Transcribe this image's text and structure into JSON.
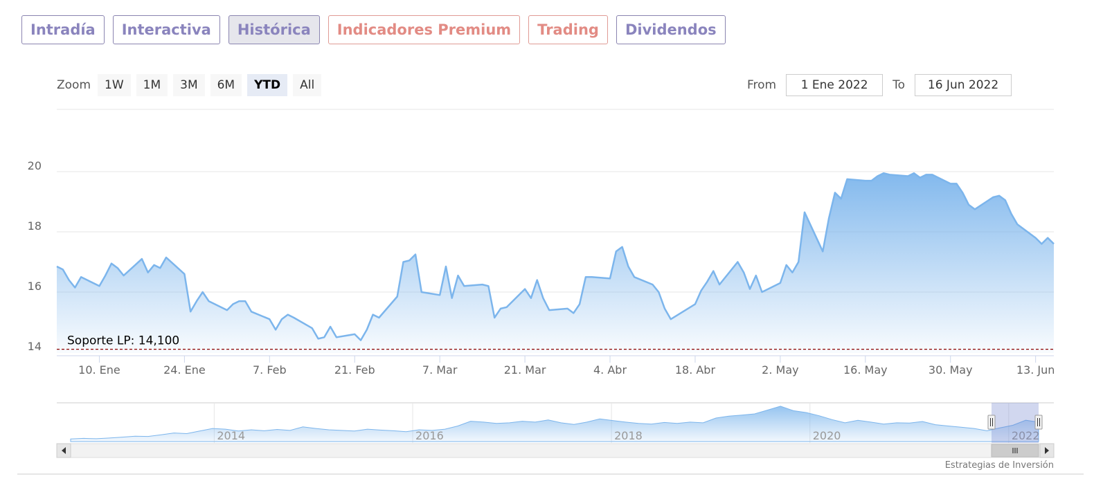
{
  "tabs": [
    {
      "label": "Intradía",
      "style": "purple",
      "active": false
    },
    {
      "label": "Interactiva",
      "style": "purple",
      "active": false
    },
    {
      "label": "Histórica",
      "style": "purple",
      "active": true
    },
    {
      "label": "Indicadores Premium",
      "style": "red",
      "active": false
    },
    {
      "label": "Trading",
      "style": "red",
      "active": false
    },
    {
      "label": "Dividendos",
      "style": "purple",
      "active": false
    }
  ],
  "zoom": {
    "label": "Zoom",
    "buttons": [
      "1W",
      "1M",
      "3M",
      "6M",
      "YTD",
      "All"
    ],
    "selected": "YTD"
  },
  "range": {
    "from_label": "From",
    "from_value": "1 Ene 2022",
    "to_label": "To",
    "to_value": "16 Jun 2022"
  },
  "credit": "Estrategias de Inversión",
  "chart_data": {
    "type": "area",
    "ylim": [
      13.9,
      22
    ],
    "yticks": [
      14,
      16,
      18,
      20
    ],
    "xlim": [
      "2022-01-03",
      "2022-06-16"
    ],
    "xticks": [
      {
        "date": "2022-01-10",
        "label": "10. Ene"
      },
      {
        "date": "2022-01-24",
        "label": "24. Ene"
      },
      {
        "date": "2022-02-07",
        "label": "7. Feb"
      },
      {
        "date": "2022-02-21",
        "label": "21. Feb"
      },
      {
        "date": "2022-03-07",
        "label": "7. Mar"
      },
      {
        "date": "2022-03-21",
        "label": "21. Mar"
      },
      {
        "date": "2022-04-04",
        "label": "4. Abr"
      },
      {
        "date": "2022-04-18",
        "label": "18. Abr"
      },
      {
        "date": "2022-05-02",
        "label": "2. May"
      },
      {
        "date": "2022-05-16",
        "label": "16. May"
      },
      {
        "date": "2022-05-30",
        "label": "30. May"
      },
      {
        "date": "2022-06-13",
        "label": "13. Jun"
      }
    ],
    "plot_band_line": {
      "value": 14.1,
      "label": "Soporte LP: 14,100",
      "color": "#8b0000"
    },
    "series": [
      {
        "color": "#7cb5ec",
        "values": [
          [
            "2022-01-03",
            16.85
          ],
          [
            "2022-01-04",
            16.75
          ],
          [
            "2022-01-05",
            16.4
          ],
          [
            "2022-01-06",
            16.15
          ],
          [
            "2022-01-07",
            16.5
          ],
          [
            "2022-01-10",
            16.2
          ],
          [
            "2022-01-11",
            16.55
          ],
          [
            "2022-01-12",
            16.95
          ],
          [
            "2022-01-13",
            16.8
          ],
          [
            "2022-01-14",
            16.55
          ],
          [
            "2022-01-17",
            17.1
          ],
          [
            "2022-01-18",
            16.65
          ],
          [
            "2022-01-19",
            16.9
          ],
          [
            "2022-01-20",
            16.8
          ],
          [
            "2022-01-21",
            17.15
          ],
          [
            "2022-01-24",
            16.6
          ],
          [
            "2022-01-25",
            15.35
          ],
          [
            "2022-01-26",
            15.7
          ],
          [
            "2022-01-27",
            16.0
          ],
          [
            "2022-01-28",
            15.7
          ],
          [
            "2022-01-31",
            15.4
          ],
          [
            "2022-02-01",
            15.6
          ],
          [
            "2022-02-02",
            15.7
          ],
          [
            "2022-02-03",
            15.7
          ],
          [
            "2022-02-04",
            15.35
          ],
          [
            "2022-02-07",
            15.1
          ],
          [
            "2022-02-08",
            14.75
          ],
          [
            "2022-02-09",
            15.1
          ],
          [
            "2022-02-10",
            15.25
          ],
          [
            "2022-02-11",
            15.15
          ],
          [
            "2022-02-14",
            14.8
          ],
          [
            "2022-02-15",
            14.45
          ],
          [
            "2022-02-16",
            14.5
          ],
          [
            "2022-02-17",
            14.85
          ],
          [
            "2022-02-18",
            14.5
          ],
          [
            "2022-02-21",
            14.6
          ],
          [
            "2022-02-22",
            14.4
          ],
          [
            "2022-02-23",
            14.75
          ],
          [
            "2022-02-24",
            15.25
          ],
          [
            "2022-02-25",
            15.15
          ],
          [
            "2022-02-28",
            15.85
          ],
          [
            "2022-03-01",
            17.0
          ],
          [
            "2022-03-02",
            17.05
          ],
          [
            "2022-03-03",
            17.25
          ],
          [
            "2022-03-04",
            16.0
          ],
          [
            "2022-03-07",
            15.9
          ],
          [
            "2022-03-08",
            16.85
          ],
          [
            "2022-03-09",
            15.8
          ],
          [
            "2022-03-10",
            16.55
          ],
          [
            "2022-03-11",
            16.2
          ],
          [
            "2022-03-14",
            16.25
          ],
          [
            "2022-03-15",
            16.2
          ],
          [
            "2022-03-16",
            15.15
          ],
          [
            "2022-03-17",
            15.45
          ],
          [
            "2022-03-18",
            15.5
          ],
          [
            "2022-03-21",
            16.1
          ],
          [
            "2022-03-22",
            15.8
          ],
          [
            "2022-03-23",
            16.4
          ],
          [
            "2022-03-24",
            15.8
          ],
          [
            "2022-03-25",
            15.4
          ],
          [
            "2022-03-28",
            15.45
          ],
          [
            "2022-03-29",
            15.3
          ],
          [
            "2022-03-30",
            15.6
          ],
          [
            "2022-03-31",
            16.5
          ],
          [
            "2022-04-01",
            16.5
          ],
          [
            "2022-04-04",
            16.45
          ],
          [
            "2022-04-05",
            17.35
          ],
          [
            "2022-04-06",
            17.5
          ],
          [
            "2022-04-07",
            16.85
          ],
          [
            "2022-04-08",
            16.5
          ],
          [
            "2022-04-11",
            16.25
          ],
          [
            "2022-04-12",
            16.0
          ],
          [
            "2022-04-13",
            15.45
          ],
          [
            "2022-04-14",
            15.1
          ],
          [
            "2022-04-18",
            15.6
          ],
          [
            "2022-04-19",
            16.05
          ],
          [
            "2022-04-20",
            16.35
          ],
          [
            "2022-04-21",
            16.7
          ],
          [
            "2022-04-22",
            16.25
          ],
          [
            "2022-04-25",
            17.0
          ],
          [
            "2022-04-26",
            16.65
          ],
          [
            "2022-04-27",
            16.1
          ],
          [
            "2022-04-28",
            16.55
          ],
          [
            "2022-04-29",
            16.0
          ],
          [
            "2022-05-02",
            16.3
          ],
          [
            "2022-05-03",
            16.9
          ],
          [
            "2022-05-04",
            16.65
          ],
          [
            "2022-05-05",
            17.0
          ],
          [
            "2022-05-06",
            18.65
          ],
          [
            "2022-05-09",
            17.35
          ],
          [
            "2022-05-10",
            18.45
          ],
          [
            "2022-05-11",
            19.3
          ],
          [
            "2022-05-12",
            19.1
          ],
          [
            "2022-05-13",
            19.75
          ],
          [
            "2022-05-16",
            19.7
          ],
          [
            "2022-05-17",
            19.7
          ],
          [
            "2022-05-18",
            19.85
          ],
          [
            "2022-05-19",
            19.95
          ],
          [
            "2022-05-20",
            19.9
          ],
          [
            "2022-05-23",
            19.85
          ],
          [
            "2022-05-24",
            19.95
          ],
          [
            "2022-05-25",
            19.8
          ],
          [
            "2022-05-26",
            19.9
          ],
          [
            "2022-05-27",
            19.9
          ],
          [
            "2022-05-30",
            19.6
          ],
          [
            "2022-05-31",
            19.6
          ],
          [
            "2022-06-01",
            19.3
          ],
          [
            "2022-06-02",
            18.9
          ],
          [
            "2022-06-03",
            18.75
          ],
          [
            "2022-06-06",
            19.15
          ],
          [
            "2022-06-07",
            19.2
          ],
          [
            "2022-06-08",
            19.05
          ],
          [
            "2022-06-09",
            18.6
          ],
          [
            "2022-06-10",
            18.25
          ],
          [
            "2022-06-13",
            17.8
          ],
          [
            "2022-06-14",
            17.6
          ],
          [
            "2022-06-15",
            17.8
          ],
          [
            "2022-06-16",
            17.6
          ]
        ]
      }
    ],
    "navigator": {
      "xlim": [
        "2012-06-01",
        "2022-06-16"
      ],
      "year_labels": [
        "2014",
        "2016",
        "2018",
        "2020",
        "2022"
      ],
      "values": [
        12.3,
        12.5,
        12.4,
        12.6,
        12.9,
        13.2,
        13.1,
        13.6,
        14.2,
        14.0,
        14.8,
        15.6,
        15.4,
        14.8,
        15.2,
        14.9,
        15.3,
        15.0,
        16.1,
        15.6,
        15.2,
        15.0,
        14.8,
        15.4,
        15.1,
        14.9,
        14.6,
        15.2,
        15.0,
        15.4,
        16.4,
        17.9,
        17.6,
        17.2,
        17.4,
        17.9,
        17.6,
        18.3,
        17.4,
        16.9,
        17.6,
        18.6,
        18.1,
        17.6,
        17.2,
        17.0,
        17.5,
        17.2,
        17.6,
        17.4,
        18.9,
        19.5,
        19.8,
        20.2,
        21.4,
        22.6,
        21.2,
        20.6,
        19.6,
        18.4,
        17.4,
        18.2,
        17.6,
        17.0,
        17.4,
        17.3,
        17.8,
        16.8,
        16.4,
        16.0,
        15.6,
        14.9,
        15.8,
        16.6,
        18.2,
        17.6
      ]
    }
  }
}
